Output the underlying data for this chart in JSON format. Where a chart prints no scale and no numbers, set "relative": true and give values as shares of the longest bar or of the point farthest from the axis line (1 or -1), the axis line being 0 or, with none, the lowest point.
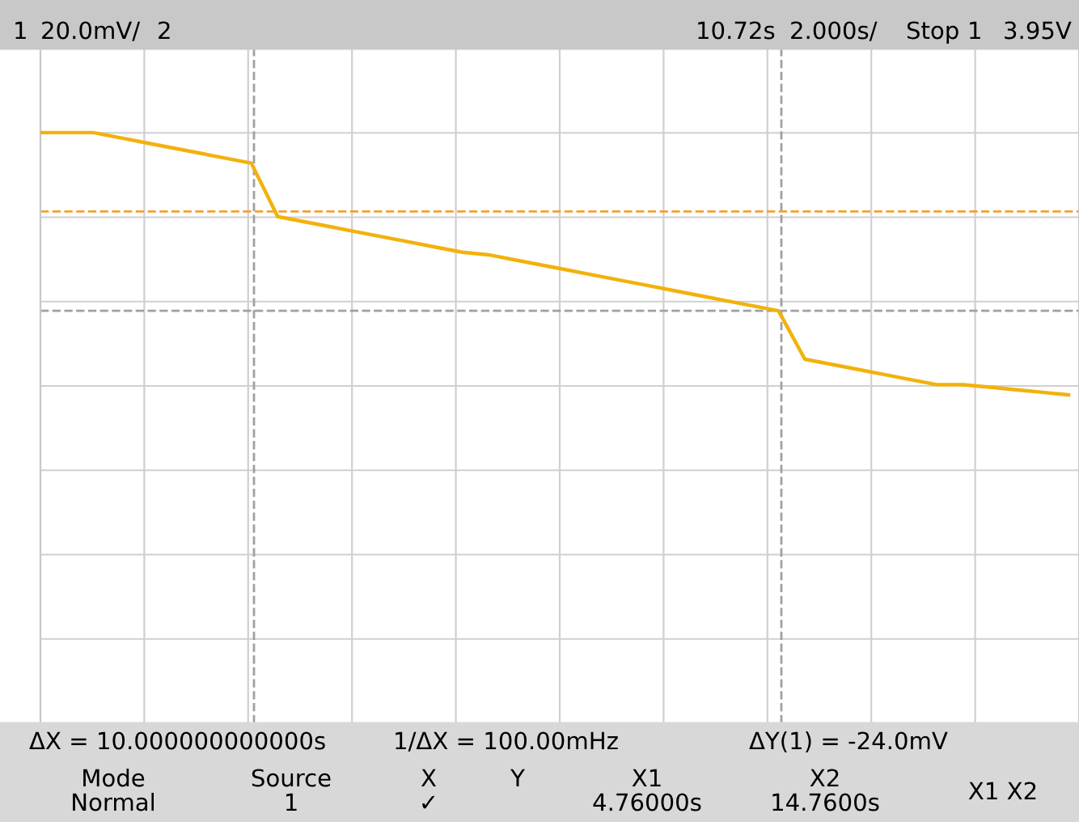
{
  "chart_data": {
    "type": "line",
    "relative": true,
    "categories": [
      null,
      null,
      null,
      null,
      null,
      null,
      null,
      null,
      null,
      null,
      null,
      null,
      null,
      null,
      null,
      null,
      null,
      null,
      null,
      null,
      null,
      null,
      null,
      null,
      null,
      null,
      null,
      null,
      null,
      null,
      null,
      null,
      null,
      null,
      null,
      null,
      null,
      null,
      null,
      null
    ],
    "series": [
      {
        "color": "#f2b20c",
        "values": [
          1.0,
          1.0,
          1.0,
          0.98,
          0.96,
          0.94,
          0.92,
          0.9,
          0.88,
          0.67,
          0.65,
          0.63,
          0.61,
          0.59,
          0.57,
          0.55,
          0.53,
          0.52,
          0.5,
          0.48,
          0.46,
          0.44,
          0.42,
          0.4,
          0.38,
          0.36,
          0.34,
          0.32,
          0.3,
          0.11,
          0.09,
          0.07,
          0.05,
          0.03,
          0.01,
          0.01,
          0.0,
          -0.01,
          -0.02,
          -0.03
        ]
      }
    ],
    "grid": true,
    "marker": "none",
    "line_style": "solid",
    "ref_lines": [
      {
        "axis": "y",
        "value": 0.69,
        "color": "#f5a030",
        "line_style": "dashed"
      },
      {
        "axis": "y",
        "value": 0.3,
        "color": "#a0a0a0",
        "line_style": "dashed"
      }
    ],
    "annotations": [
      "1",
      "20.0mV/",
      "2",
      "10.72s",
      "2.000s/",
      "Stop",
      "1",
      "3.95V",
      "ΔX = 10.000000000000s",
      "1/ΔX = 100.00mHz",
      "ΔY(1) = -24.0mV",
      "Mode",
      "Normal",
      "Source",
      "1",
      "X",
      "Y",
      "✓",
      "X1",
      "4.76000s",
      "X2",
      "14.7600s",
      "X1 X2"
    ]
  }
}
